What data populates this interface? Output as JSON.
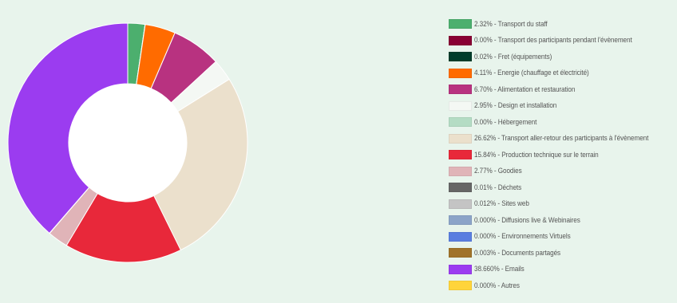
{
  "chart_data": {
    "type": "pie",
    "donut": true,
    "start_angle_deg": 0,
    "direction": "clockwise",
    "legend_position": "right",
    "legend_format": "{value} - {label}",
    "series": [
      {
        "label": "Transport du staff",
        "value_text": "2.32%",
        "value": 2.32,
        "color": "#4caf6e"
      },
      {
        "label": "Transport des participants pendant l'évènement",
        "value_text": "0.00%",
        "value": 0.0,
        "color": "#880033"
      },
      {
        "label": "Fret (équipements)",
        "value_text": "0.02%",
        "value": 0.02,
        "color": "#003d2b"
      },
      {
        "label": "Energie (chauffage et électricité)",
        "value_text": "4.11%",
        "value": 4.11,
        "color": "#ff6b00"
      },
      {
        "label": "Alimentation et restauration",
        "value_text": "6.70%",
        "value": 6.7,
        "color": "#b83280"
      },
      {
        "label": "Design et installation",
        "value_text": "2.95%",
        "value": 2.95,
        "color": "#f4f8f4"
      },
      {
        "label": "Hébergement",
        "value_text": "0.00%",
        "value": 0.0,
        "color": "#b4dcc4"
      },
      {
        "label": "Transport aller-retour des participants à l'évènement",
        "value_text": "26.62%",
        "value": 26.62,
        "color": "#ebe0cc"
      },
      {
        "label": "Production technique sur le terrain",
        "value_text": "15.84%",
        "value": 15.84,
        "color": "#e8283a"
      },
      {
        "label": "Goodies",
        "value_text": "2.77%",
        "value": 2.77,
        "color": "#e0b4b8"
      },
      {
        "label": "Déchets",
        "value_text": "0.01%",
        "value": 0.01,
        "color": "#666666"
      },
      {
        "label": "Sites web",
        "value_text": "0.012%",
        "value": 0.012,
        "color": "#c4c4c4"
      },
      {
        "label": "Diffusions live & Webinaires",
        "value_text": "0.000%",
        "value": 0.0,
        "color": "#8ca4c8"
      },
      {
        "label": "Environnements Virtuels",
        "value_text": "0.000%",
        "value": 0.0,
        "color": "#5a7ee0"
      },
      {
        "label": "Documents partagés",
        "value_text": "0.003%",
        "value": 0.003,
        "color": "#a0732a"
      },
      {
        "label": "Emails",
        "value_text": "38.660%",
        "value": 38.66,
        "color": "#9b3cf0"
      },
      {
        "label": "Autres",
        "value_text": "0.000%",
        "value": 0.0,
        "color": "#ffd43a"
      }
    ]
  }
}
